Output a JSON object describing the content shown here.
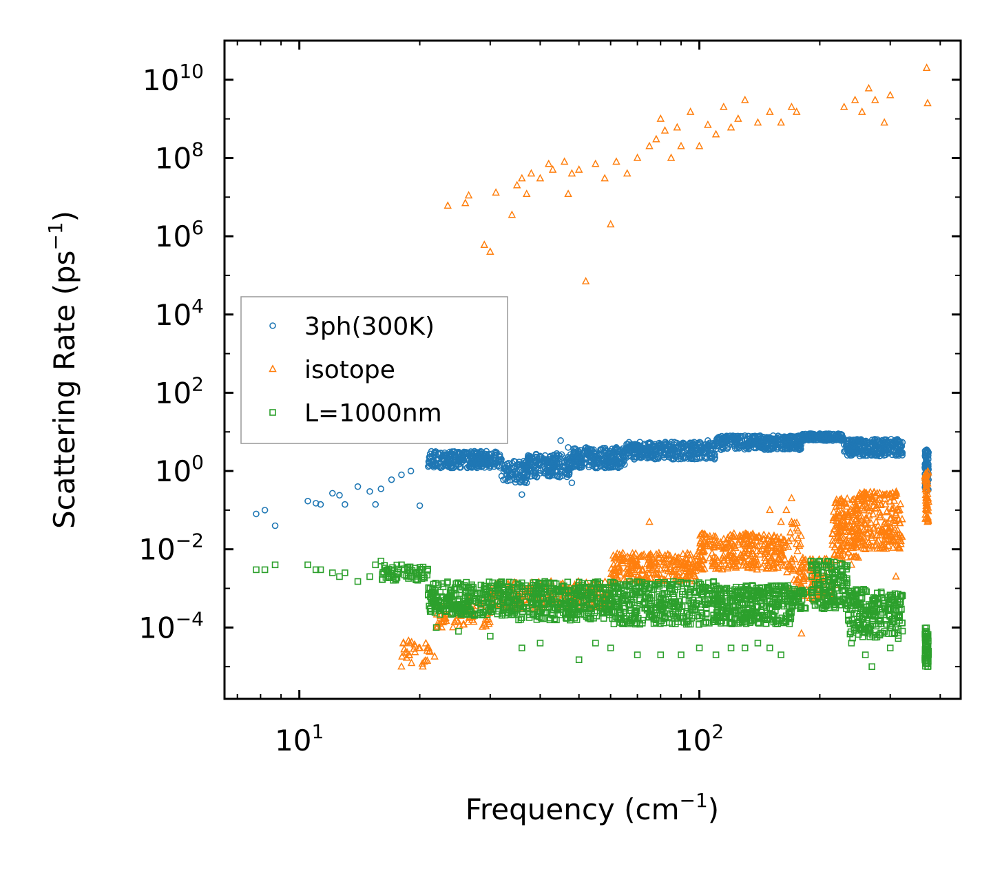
{
  "chart_data": {
    "type": "scatter",
    "title": "",
    "xlabel": {
      "base": "Frequency (cm",
      "sup": "−1",
      "tail": ")"
    },
    "ylabel": {
      "base": "Scattering Rate (ps",
      "sup": "−1",
      "tail": ")"
    },
    "xscale": "log",
    "yscale": "log",
    "xlim": [
      6.5,
      450
    ],
    "ylim": [
      1.5e-06,
      100000000000
    ],
    "xticks": [
      {
        "value": 10,
        "base": "10",
        "exp": "1"
      },
      {
        "value": 100,
        "base": "10",
        "exp": "2"
      }
    ],
    "yticks": [
      {
        "value": 0.0001,
        "base": "10",
        "exp": "−4"
      },
      {
        "value": 0.01,
        "base": "10",
        "exp": "−2"
      },
      {
        "value": 1,
        "base": "10",
        "exp": "0"
      },
      {
        "value": 100,
        "base": "10",
        "exp": "2"
      },
      {
        "value": 10000,
        "base": "10",
        "exp": "4"
      },
      {
        "value": 1000000,
        "base": "10",
        "exp": "6"
      },
      {
        "value": 100000000,
        "base": "10",
        "exp": "8"
      },
      {
        "value": 10000000000,
        "base": "10",
        "exp": "10"
      }
    ],
    "legend_position": "center-left",
    "grid": false,
    "series": [
      {
        "name": "3ph(300K)",
        "marker": "circle",
        "color": "#1f77b4",
        "points": [
          [
            7.8,
            0.08
          ],
          [
            8.2,
            0.1
          ],
          [
            8.7,
            0.04
          ],
          [
            10.5,
            0.17
          ],
          [
            11,
            0.15
          ],
          [
            11.3,
            0.14
          ],
          [
            12.1,
            0.27
          ],
          [
            12.6,
            0.24
          ],
          [
            13,
            0.14
          ],
          [
            14,
            0.4
          ],
          [
            15,
            0.3
          ],
          [
            15.5,
            0.14
          ],
          [
            16,
            0.35
          ],
          [
            17,
            0.6
          ],
          [
            18,
            0.8
          ],
          [
            19,
            1.0
          ],
          [
            20,
            0.13
          ],
          [
            21,
            1.3
          ],
          [
            22,
            2
          ],
          [
            24,
            2.5
          ],
          [
            26,
            3
          ],
          [
            28,
            2.5
          ],
          [
            30,
            2.2
          ],
          [
            32,
            2
          ],
          [
            34,
            1.2
          ],
          [
            35,
            0.6
          ],
          [
            36,
            0.25
          ],
          [
            37,
            0.5
          ],
          [
            38,
            1
          ],
          [
            40,
            1.5
          ],
          [
            42,
            2
          ],
          [
            44,
            2.8
          ],
          [
            45,
            6
          ],
          [
            47,
            4
          ],
          [
            48,
            0.5
          ],
          [
            50,
            3
          ],
          [
            53,
            2.5
          ],
          [
            55,
            1.2
          ],
          [
            58,
            3.5
          ],
          [
            62,
            4
          ],
          [
            66,
            3
          ],
          [
            70,
            3.5
          ],
          [
            75,
            4
          ],
          [
            80,
            4.5
          ],
          [
            85,
            3.5
          ],
          [
            90,
            4
          ],
          [
            95,
            5
          ],
          [
            100,
            4.5
          ],
          [
            105,
            6
          ],
          [
            110,
            5.5
          ],
          [
            115,
            6
          ],
          [
            120,
            6.5
          ],
          [
            125,
            7
          ],
          [
            130,
            8
          ],
          [
            135,
            6
          ],
          [
            140,
            6.5
          ],
          [
            150,
            7
          ],
          [
            160,
            6.5
          ],
          [
            170,
            7.5
          ],
          [
            180,
            8
          ],
          [
            190,
            9
          ],
          [
            200,
            9
          ],
          [
            210,
            8
          ],
          [
            220,
            7
          ],
          [
            230,
            6
          ],
          [
            240,
            4
          ],
          [
            250,
            3.5
          ],
          [
            260,
            4
          ],
          [
            270,
            3
          ],
          [
            280,
            3
          ],
          [
            290,
            3.5
          ],
          [
            300,
            4
          ],
          [
            310,
            2.5
          ],
          [
            315,
            2.5
          ],
          [
            320,
            3
          ],
          [
            370,
            3.5
          ]
        ],
        "ranges": [
          {
            "x": [
              21,
              32
            ],
            "y": [
              1.2,
              3.2
            ],
            "n": 260
          },
          {
            "x": [
              32,
              37
            ],
            "y": [
              0.5,
              1.8
            ],
            "n": 80
          },
          {
            "x": [
              37,
              48
            ],
            "y": [
              0.7,
              2.8
            ],
            "n": 180
          },
          {
            "x": [
              48,
              65
            ],
            "y": [
              1.2,
              4
            ],
            "n": 220
          },
          {
            "x": [
              65,
              110
            ],
            "y": [
              2,
              5.5
            ],
            "n": 320
          },
          {
            "x": [
              110,
              180
            ],
            "y": [
              3.5,
              8
            ],
            "n": 320
          },
          {
            "x": [
              180,
              230
            ],
            "y": [
              6,
              9
            ],
            "n": 160
          },
          {
            "x": [
              230,
              322
            ],
            "y": [
              2.4,
              6.5
            ],
            "n": 260
          },
          {
            "x": [
              366,
              374
            ],
            "y": [
              0.3,
              3.5
            ],
            "n": 80
          }
        ]
      },
      {
        "name": "isotope",
        "marker": "triangle",
        "color": "#ff7f0e",
        "points": [
          [
            23.5,
            6000000
          ],
          [
            26,
            7000000
          ],
          [
            26.5,
            11000000
          ],
          [
            29,
            600000.0
          ],
          [
            30,
            400000.0
          ],
          [
            31,
            13000000
          ],
          [
            34,
            3500000
          ],
          [
            35,
            20000000
          ],
          [
            36,
            30000000
          ],
          [
            37,
            12000000
          ],
          [
            38,
            40000000
          ],
          [
            40,
            30000000
          ],
          [
            42,
            70000000
          ],
          [
            43,
            50000000
          ],
          [
            46,
            80000000
          ],
          [
            47,
            12000000
          ],
          [
            48,
            40000000
          ],
          [
            50,
            50000000
          ],
          [
            52,
            70000.0
          ],
          [
            55,
            70000000
          ],
          [
            58,
            30000000
          ],
          [
            60,
            2000000
          ],
          [
            62,
            80000000
          ],
          [
            66,
            40000000
          ],
          [
            70,
            100000000
          ],
          [
            75,
            200000000
          ],
          [
            78,
            300000000
          ],
          [
            80,
            1000000000
          ],
          [
            82,
            500000000
          ],
          [
            85,
            100000000
          ],
          [
            88,
            600000000
          ],
          [
            90,
            200000000
          ],
          [
            95,
            1500000000
          ],
          [
            100,
            200000000
          ],
          [
            105,
            700000000
          ],
          [
            110,
            400000000
          ],
          [
            115,
            2000000000
          ],
          [
            120,
            600000000
          ],
          [
            125,
            1000000000
          ],
          [
            130,
            3000000000
          ],
          [
            140,
            800000000
          ],
          [
            150,
            1500000000
          ],
          [
            160,
            800000000
          ],
          [
            170,
            2000000000
          ],
          [
            175,
            1500000000
          ],
          [
            230,
            2000000000
          ],
          [
            245,
            3000000000
          ],
          [
            255,
            1500000000
          ],
          [
            265,
            6000000000
          ],
          [
            275,
            3000000000
          ],
          [
            290,
            800000000
          ],
          [
            300,
            4000000000
          ],
          [
            370,
            20000000000
          ],
          [
            372,
            2500000000
          ],
          [
            18,
            1e-05
          ],
          [
            20,
            3e-05
          ],
          [
            22,
            0.0001
          ],
          [
            25,
            0.0002
          ],
          [
            30,
            0.0003
          ],
          [
            40,
            0.0005
          ],
          [
            50,
            0.0008
          ],
          [
            60,
            0.001
          ],
          [
            70,
            0.002
          ],
          [
            80,
            0.003
          ],
          [
            90,
            0.004
          ],
          [
            100,
            0.005
          ],
          [
            110,
            0.006
          ],
          [
            120,
            0.007
          ],
          [
            130,
            0.009
          ],
          [
            140,
            0.012
          ],
          [
            150,
            0.015
          ],
          [
            160,
            0.02
          ],
          [
            165,
            0.1
          ],
          [
            170,
            0.2
          ],
          [
            175,
            0.001
          ],
          [
            180,
            7e-05
          ],
          [
            200,
            0.0006
          ],
          [
            220,
            0.0012
          ],
          [
            240,
            0.004
          ],
          [
            260,
            0.01
          ],
          [
            280,
            0.03
          ],
          [
            300,
            0.06
          ],
          [
            310,
            0.002
          ],
          [
            370,
            0.2
          ],
          [
            372,
            0.05
          ],
          [
            75,
            0.05
          ],
          [
            150,
            0.1
          ],
          [
            160,
            0.05
          ]
        ],
        "ranges": [
          {
            "x": [
              18,
              22
            ],
            "y": [
              1e-05,
              5e-05
            ],
            "n": 30
          },
          {
            "x": [
              22,
              30
            ],
            "y": [
              0.0001,
              0.0005
            ],
            "n": 60
          },
          {
            "x": [
              30,
              60
            ],
            "y": [
              0.0003,
              0.0015
            ],
            "n": 200
          },
          {
            "x": [
              60,
              100
            ],
            "y": [
              0.0015,
              0.008
            ],
            "n": 240
          },
          {
            "x": [
              100,
              165
            ],
            "y": [
              0.003,
              0.025
            ],
            "n": 260
          },
          {
            "x": [
              165,
              180
            ],
            "y": [
              0.001,
              0.05
            ],
            "n": 40
          },
          {
            "x": [
              180,
              215
            ],
            "y": [
              0.0005,
              0.006
            ],
            "n": 80
          },
          {
            "x": [
              215,
              250
            ],
            "y": [
              0.005,
              0.2
            ],
            "n": 160
          },
          {
            "x": [
              250,
              322
            ],
            "y": [
              0.01,
              0.3
            ],
            "n": 200
          },
          {
            "x": [
              366,
              374
            ],
            "y": [
              0.05,
              1
            ],
            "n": 50
          }
        ]
      },
      {
        "name": "L=1000nm",
        "marker": "square",
        "color": "#2ca02c",
        "points": [
          [
            7.8,
            0.003
          ],
          [
            8.2,
            0.003
          ],
          [
            8.7,
            0.004
          ],
          [
            10.5,
            0.004
          ],
          [
            11,
            0.003
          ],
          [
            11.3,
            0.003
          ],
          [
            12.1,
            0.0025
          ],
          [
            12.6,
            0.002
          ],
          [
            13,
            0.0025
          ],
          [
            14,
            0.0015
          ],
          [
            15,
            0.002
          ],
          [
            15.5,
            0.004
          ],
          [
            16,
            0.005
          ],
          [
            17,
            0.003
          ],
          [
            18,
            0.004
          ],
          [
            19,
            0.002
          ],
          [
            20,
            0.003
          ],
          [
            21,
            0.0007
          ],
          [
            22,
            0.0001
          ],
          [
            25,
            8e-05
          ],
          [
            30,
            6e-05
          ],
          [
            36,
            3e-05
          ],
          [
            40,
            4e-05
          ],
          [
            50,
            1.5e-05
          ],
          [
            55,
            4e-05
          ],
          [
            60,
            3e-05
          ],
          [
            70,
            2e-05
          ],
          [
            80,
            2e-05
          ],
          [
            90,
            2e-05
          ],
          [
            100,
            3e-05
          ],
          [
            110,
            2e-05
          ],
          [
            120,
            3e-05
          ],
          [
            130,
            3e-05
          ],
          [
            140,
            4e-05
          ],
          [
            150,
            3e-05
          ],
          [
            160,
            2e-05
          ],
          [
            190,
            0.005
          ],
          [
            200,
            0.005
          ],
          [
            210,
            0.005
          ],
          [
            220,
            0.003
          ],
          [
            240,
            4e-05
          ],
          [
            260,
            2e-05
          ],
          [
            270,
            1e-05
          ],
          [
            300,
            3e-05
          ]
        ],
        "ranges": [
          {
            "x": [
              16,
              21
            ],
            "y": [
              0.0015,
              0.004
            ],
            "n": 60
          },
          {
            "x": [
              21,
              35
            ],
            "y": [
              0.0002,
              0.0015
            ],
            "n": 300
          },
          {
            "x": [
              35,
              60
            ],
            "y": [
              0.00015,
              0.0015
            ],
            "n": 320
          },
          {
            "x": [
              60,
              110
            ],
            "y": [
              0.00012,
              0.0015
            ],
            "n": 360
          },
          {
            "x": [
              110,
              170
            ],
            "y": [
              0.00012,
              0.0012
            ],
            "n": 320
          },
          {
            "x": [
              170,
              185
            ],
            "y": [
              0.0003,
              0.001
            ],
            "n": 40
          },
          {
            "x": [
              190,
              235
            ],
            "y": [
              0.0003,
              0.005
            ],
            "n": 140
          },
          {
            "x": [
              235,
              322
            ],
            "y": [
              5e-05,
              0.001
            ],
            "n": 220
          },
          {
            "x": [
              366,
              374
            ],
            "y": [
              1e-05,
              0.0001
            ],
            "n": 60
          }
        ]
      }
    ]
  }
}
